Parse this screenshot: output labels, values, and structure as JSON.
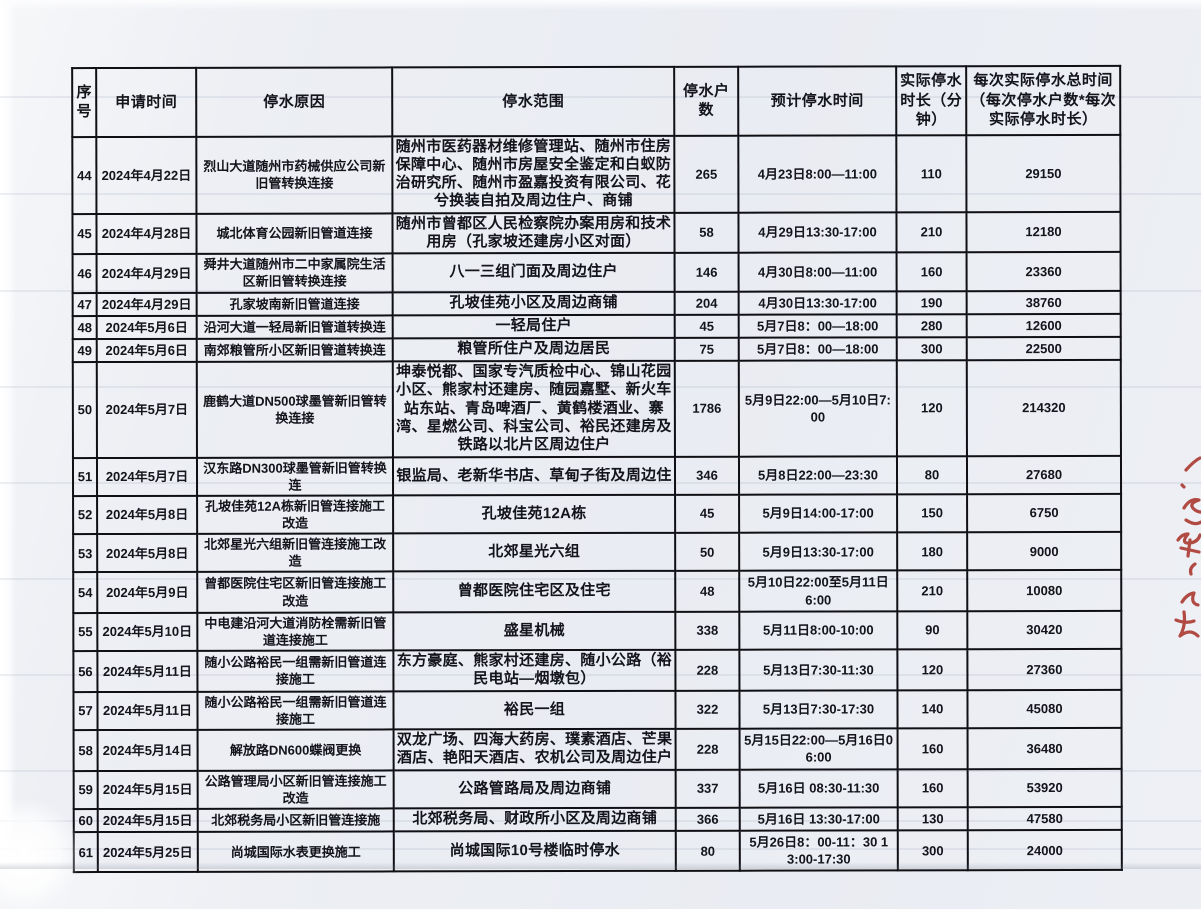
{
  "table": {
    "columns": [
      "序号",
      "申请时间",
      "停水原因",
      "停水范围",
      "停水户数",
      "预计停水时间",
      "实际停水时长（分钟）",
      "每次实际停水总时间（每次停水户数*每次实际停水时长）"
    ],
    "fields": [
      "no",
      "applied",
      "reason",
      "scope",
      "households",
      "planned",
      "minutes",
      "total"
    ],
    "rows": [
      {
        "no": "44",
        "applied": "2024年4月22日",
        "reason": "烈山大道随州市药械供应公司新旧管转换连接",
        "scope": "随州市医药器材维修管理站、随州市住房保障中心、随州市房屋安全鉴定和白蚁防治研究所、随州市盈嘉投资有限公司、花兮换装自拍及周边住户、商铺",
        "households": "265",
        "planned": "4月23日8:00—11:00",
        "minutes": "110",
        "total": "29150"
      },
      {
        "no": "45",
        "applied": "2024年4月28日",
        "reason": "城北体育公园新旧管道连接",
        "scope": "随州市曾都区人民检察院办案用房和技术用房（孔家坡还建房小区对面）",
        "households": "58",
        "planned": "4月29日13:30-17:00",
        "minutes": "210",
        "total": "12180"
      },
      {
        "no": "46",
        "applied": "2024年4月29日",
        "reason": "舜井大道随州市二中家属院生活区新旧管转换连接",
        "scope": "八一三组门面及周边住户",
        "households": "146",
        "planned": "4月30日8:00—11:00",
        "minutes": "160",
        "total": "23360"
      },
      {
        "no": "47",
        "applied": "2024年4月29日",
        "reason": "孔家坡南新旧管道连接",
        "scope": "孔坡佳苑小区及周边商铺",
        "households": "204",
        "planned": "4月30日13:30-17:00",
        "minutes": "190",
        "total": "38760"
      },
      {
        "no": "48",
        "applied": "2024年5月6日",
        "reason": "沿河大道一轻局新旧管道转换连",
        "scope": "一轻局住户",
        "households": "45",
        "planned": "5月7日8：00—18:00",
        "minutes": "280",
        "total": "12600"
      },
      {
        "no": "49",
        "applied": "2024年5月6日",
        "reason": "南郊粮管所小区新旧管道转换连",
        "scope": "粮管所住户及周边居民",
        "households": "75",
        "planned": "5月7日8：00—18:00",
        "minutes": "300",
        "total": "22500"
      },
      {
        "no": "50",
        "applied": "2024年5月7日",
        "reason": "鹿鹤大道DN500球墨管新旧管转换连接",
        "scope": "坤泰悦都、国家专汽质检中心、锦山花园小区、熊家村还建房、随园嘉墅、新火车站东站、青岛啤酒厂、黄鹤楼酒业、寨湾、星燃公司、科宝公司、裕民还建房及铁路以北片区周边住户",
        "households": "1786",
        "planned": "5月9日22:00—5月10日7:00",
        "minutes": "120",
        "total": "214320"
      },
      {
        "no": "51",
        "applied": "2024年5月7日",
        "reason": "汉东路DN300球墨管新旧管转换连",
        "scope": "银监局、老新华书店、草甸子街及周边住",
        "households": "346",
        "planned": "5月8日22:00—23:30",
        "minutes": "80",
        "total": "27680"
      },
      {
        "no": "52",
        "applied": "2024年5月8日",
        "reason": "孔坡佳苑12A栋新旧管连接施工改造",
        "scope": "孔坡佳苑12A栋",
        "households": "45",
        "planned": "5月9日14:00-17:00",
        "minutes": "150",
        "total": "6750"
      },
      {
        "no": "53",
        "applied": "2024年5月8日",
        "reason": "北郊星光六组新旧管连接施工改造",
        "scope": "北郊星光六组",
        "households": "50",
        "planned": "5月9日13:30-17:00",
        "minutes": "180",
        "total": "9000"
      },
      {
        "no": "54",
        "applied": "2024年5月9日",
        "reason": "曾都医院住宅区新旧管连接施工改造",
        "scope": "曾都医院住宅区及住宅",
        "households": "48",
        "planned": "5月10日22:00至5月11日6:00",
        "minutes": "210",
        "total": "10080"
      },
      {
        "no": "55",
        "applied": "2024年5月10日",
        "reason": "中电建沿河大道消防栓需新旧管道连接施工",
        "scope": "盛星机械",
        "households": "338",
        "planned": "5月11日8:00-10:00",
        "minutes": "90",
        "total": "30420"
      },
      {
        "no": "56",
        "applied": "2024年5月11日",
        "reason": "随小公路裕民一组需新旧管道连接施工",
        "scope": "东方豪庭、熊家村还建房、随小公路（裕民电站—烟墩包）",
        "households": "228",
        "planned": "5月13日7:30-11:30",
        "minutes": "120",
        "total": "27360"
      },
      {
        "no": "57",
        "applied": "2024年5月11日",
        "reason": "随小公路裕民一组需新旧管道连接施工",
        "scope": "裕民一组",
        "households": "322",
        "planned": "5月13日7:30-17:30",
        "minutes": "140",
        "total": "45080"
      },
      {
        "no": "58",
        "applied": "2024年5月14日",
        "reason": "解放路DN600蝶阀更换",
        "scope": "双龙广场、四海大药房、璞素酒店、芒果酒店、艳阳天酒店、农机公司及周边住户",
        "households": "228",
        "planned": "5月15日22:00—5月16日06:00",
        "minutes": "160",
        "total": "36480"
      },
      {
        "no": "59",
        "applied": "2024年5月15日",
        "reason": "公路管理局小区新旧管连接施工改造",
        "scope": "公路管路局及周边商铺",
        "households": "337",
        "planned": "5月16日 08:30-11:30",
        "minutes": "160",
        "total": "53920"
      },
      {
        "no": "60",
        "applied": "2024年5月15日",
        "reason": "北郊税务局小区新旧管连接施",
        "scope": "北郊税务局、财政所小区及周边商铺",
        "households": "366",
        "planned": "5月16日 13:30-17:00",
        "minutes": "130",
        "total": "47580"
      },
      {
        "no": "61",
        "applied": "2024年5月25日",
        "reason": "尚城国际水表更换施工",
        "scope": "尚城国际10号楼临时停水",
        "households": "80",
        "planned": "5月26日8：00-11：30 13:00-17:30",
        "minutes": "300",
        "total": "24000"
      }
    ]
  },
  "annotation": {
    "ink_color": "#a8342a"
  }
}
